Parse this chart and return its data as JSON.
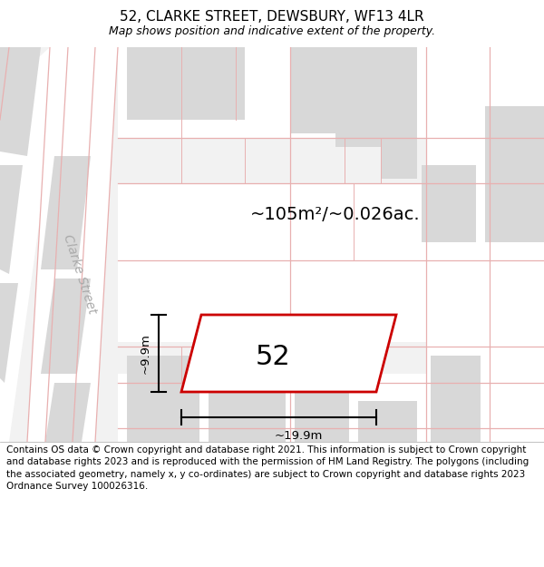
{
  "title": "52, CLARKE STREET, DEWSBURY, WF13 4LR",
  "subtitle": "Map shows position and indicative extent of the property.",
  "area_text": "~105m²/~0.026ac.",
  "number_label": "52",
  "width_label": "~19.9m",
  "height_label": "~9.9m",
  "street_label": "Clarke Street",
  "footer": "Contains OS data © Crown copyright and database right 2021. This information is subject to Crown copyright and database rights 2023 and is reproduced with the permission of HM Land Registry. The polygons (including the associated geometry, namely x, y co-ordinates) are subject to Crown copyright and database rights 2023 Ordnance Survey 100026316.",
  "bg_color": "#f2f2f2",
  "map_bg": "#f2f2f2",
  "building_color": "#d8d8d8",
  "road_color": "#ffffff",
  "property_edge_color": "#cc0000",
  "road_line_color": "#e8b0b0",
  "title_fontsize": 11,
  "subtitle_fontsize": 9,
  "footer_fontsize": 7.5,
  "area_fontsize": 14,
  "number_fontsize": 22,
  "dim_fontsize": 9.5,
  "street_fontsize": 10
}
